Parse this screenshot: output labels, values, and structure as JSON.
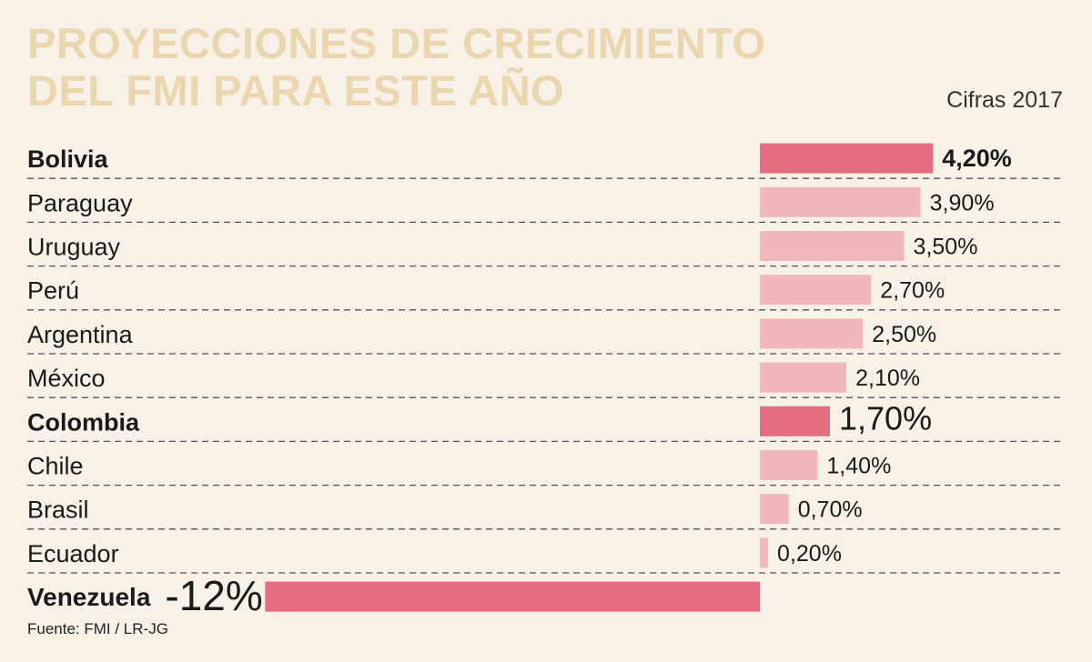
{
  "title_lines": [
    "PROYECCIONES DE CRECIMIENTO",
    "DEL FMI PARA ESTE AÑO"
  ],
  "subtitle": "Cifras 2017",
  "source": "Fuente: FMI / LR-JG",
  "colors": {
    "background": "#f8f1e7",
    "title": "#ead7af",
    "highlight_bar": "#e56d80",
    "normal_bar": "#f2b6bd",
    "divider": "#555555"
  },
  "chart_data": {
    "type": "bar",
    "orientation": "horizontal",
    "title": "PROYECCIONES DE CRECIMIENTO DEL FMI PARA ESTE AÑO",
    "subtitle": "Cifras 2017",
    "categories": [
      "Bolivia",
      "Paraguay",
      "Uruguay",
      "Perú",
      "Argentina",
      "México",
      "Colombia",
      "Chile",
      "Brasil",
      "Ecuador",
      "Venezuela"
    ],
    "values": [
      4.2,
      3.9,
      3.5,
      2.7,
      2.5,
      2.1,
      1.7,
      1.4,
      0.7,
      0.2,
      -12
    ],
    "value_labels": [
      "4,20%",
      "3,90%",
      "3,50%",
      "2,70%",
      "2,50%",
      "2,10%",
      "1,70%",
      "1,40%",
      "0,70%",
      "0,20%",
      "-12%"
    ],
    "highlighted": [
      "Bolivia",
      "Colombia",
      "Venezuela"
    ],
    "unit": "%",
    "xlim": [
      -12,
      4.2
    ],
    "grid": false,
    "legend": "none"
  }
}
